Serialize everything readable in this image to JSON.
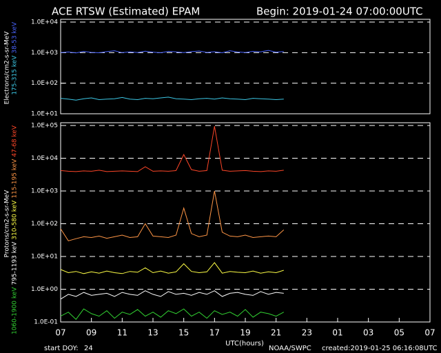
{
  "chart_data": [
    {
      "type": "line",
      "title": "ACE RTSW (Estimated) EPAM",
      "subtitle": "Begin: 2019-01-24 07:00:00UTC",
      "ylabel": "Electrons/cm2-s-sr-MeV",
      "log_y": true,
      "grid": true,
      "xlim": [
        0,
        24
      ],
      "ylim": [
        10,
        10000
      ],
      "yticks": [
        {
          "value": 10,
          "label": "1.0E+01"
        },
        {
          "value": 100,
          "label": "1.0E+02"
        },
        {
          "value": 1000,
          "label": "1.0E+03"
        },
        {
          "value": 10000,
          "label": "1.0E+04"
        }
      ],
      "x": [
        0,
        0.5,
        1,
        1.5,
        2,
        2.5,
        3,
        3.5,
        4,
        4.5,
        5,
        5.5,
        6,
        6.5,
        7,
        7.5,
        8,
        8.5,
        9,
        9.5,
        10,
        10.5,
        11,
        11.5,
        12,
        12.5,
        13,
        13.5,
        14,
        14.5
      ],
      "series": [
        {
          "name": "38-53 keV",
          "color": "#4a64ff",
          "values": [
            1000,
            1050,
            980,
            1100,
            1020,
            990,
            1080,
            1150,
            1000,
            1060,
            1010,
            1120,
            1040,
            990,
            1100,
            1060,
            1000,
            1080,
            1130,
            1020,
            1070,
            990,
            1150,
            1050,
            1010,
            1100,
            1060,
            1180,
            1040,
            1090
          ]
        },
        {
          "name": "175-315 keV",
          "color": "#3cc8e6",
          "values": [
            32,
            30,
            28,
            31,
            33,
            29,
            30,
            31,
            34,
            30,
            29,
            32,
            31,
            33,
            35,
            31,
            30,
            29,
            31,
            32,
            30,
            33,
            31,
            30,
            29,
            32,
            31,
            30,
            29,
            30
          ]
        }
      ]
    },
    {
      "type": "line",
      "ylabel": "Protons/cm2-s-sr-MeV",
      "log_y": true,
      "grid": true,
      "xlabel": "UTC(hours)",
      "xlim": [
        0,
        24
      ],
      "ylim": [
        0.1,
        100000
      ],
      "xticks": [
        {
          "value": 0,
          "label": "07"
        },
        {
          "value": 2,
          "label": "09"
        },
        {
          "value": 4,
          "label": "11"
        },
        {
          "value": 6,
          "label": "13"
        },
        {
          "value": 8,
          "label": "15"
        },
        {
          "value": 10,
          "label": "17"
        },
        {
          "value": 12,
          "label": "19"
        },
        {
          "value": 14,
          "label": "21"
        },
        {
          "value": 16,
          "label": "23"
        },
        {
          "value": 18,
          "label": "01"
        },
        {
          "value": 20,
          "label": "03"
        },
        {
          "value": 22,
          "label": "05"
        },
        {
          "value": 24,
          "label": "07"
        }
      ],
      "yticks": [
        {
          "value": 0.1,
          "label": "1.0E-01"
        },
        {
          "value": 1,
          "label": "1.0E+00"
        },
        {
          "value": 10,
          "label": "1.0E+01"
        },
        {
          "value": 100,
          "label": "1.0E+02"
        },
        {
          "value": 1000,
          "label": "1.0E+03"
        },
        {
          "value": 10000,
          "label": "1.0E+04"
        },
        {
          "value": 100000,
          "label": "1.0E+05"
        }
      ],
      "x": [
        0,
        0.5,
        1,
        1.5,
        2,
        2.5,
        3,
        3.5,
        4,
        4.5,
        5,
        5.5,
        6,
        6.5,
        7,
        7.5,
        8,
        8.5,
        9,
        9.5,
        10,
        10.5,
        11,
        11.5,
        12,
        12.5,
        13,
        13.5,
        14,
        14.5
      ],
      "series": [
        {
          "name": "47-68 keV",
          "color": "#ff4628",
          "values": [
            4200,
            4000,
            3900,
            4100,
            4000,
            4300,
            3900,
            4000,
            4100,
            4000,
            3900,
            5500,
            4000,
            4100,
            4000,
            4200,
            13000,
            4500,
            4000,
            4200,
            95000,
            4300,
            4000,
            4100,
            4200,
            4000,
            3900,
            4100,
            4000,
            4300
          ]
        },
        {
          "name": "115-195 keV",
          "color": "#ff9646",
          "values": [
            70,
            30,
            35,
            40,
            38,
            42,
            36,
            40,
            45,
            38,
            40,
            100,
            42,
            40,
            38,
            45,
            300,
            50,
            40,
            45,
            1000,
            55,
            42,
            40,
            45,
            38,
            40,
            42,
            40,
            65
          ]
        },
        {
          "name": "310-580 keV",
          "color": "#ffff46",
          "values": [
            4,
            3.2,
            3.5,
            3,
            3.4,
            3.1,
            3.6,
            3.2,
            3,
            3.5,
            3.3,
            4.5,
            3.2,
            3.6,
            3.1,
            3.4,
            6,
            3.5,
            3.2,
            3.4,
            6.5,
            3.1,
            3.5,
            3.3,
            3.2,
            3.6,
            3.1,
            3.4,
            3.2,
            3.8
          ]
        },
        {
          "name": "795-1193 keV",
          "color": "#ffffff",
          "values": [
            0.5,
            0.7,
            0.6,
            0.8,
            0.65,
            0.7,
            0.75,
            0.6,
            0.8,
            0.7,
            0.65,
            0.9,
            0.7,
            0.6,
            0.85,
            0.7,
            0.75,
            0.65,
            0.8,
            0.7,
            0.9,
            0.6,
            0.75,
            0.8,
            0.7,
            0.65,
            0.85,
            0.7,
            0.8,
            0.75
          ]
        },
        {
          "name": "1060-1900 keV",
          "color": "#32d232",
          "values": [
            0.15,
            0.2,
            0.12,
            0.25,
            0.18,
            0.15,
            0.22,
            0.13,
            0.2,
            0.17,
            0.24,
            0.15,
            0.2,
            0.14,
            0.22,
            0.18,
            0.25,
            0.15,
            0.2,
            0.13,
            0.22,
            0.17,
            0.2,
            0.15,
            0.24,
            0.14,
            0.2,
            0.18,
            0.15,
            0.2
          ]
        }
      ],
      "annotations": [
        "start DOY:",
        "24",
        "NOAA/SWPC",
        "created:2019-01-25 06:16:08UTC"
      ]
    }
  ]
}
